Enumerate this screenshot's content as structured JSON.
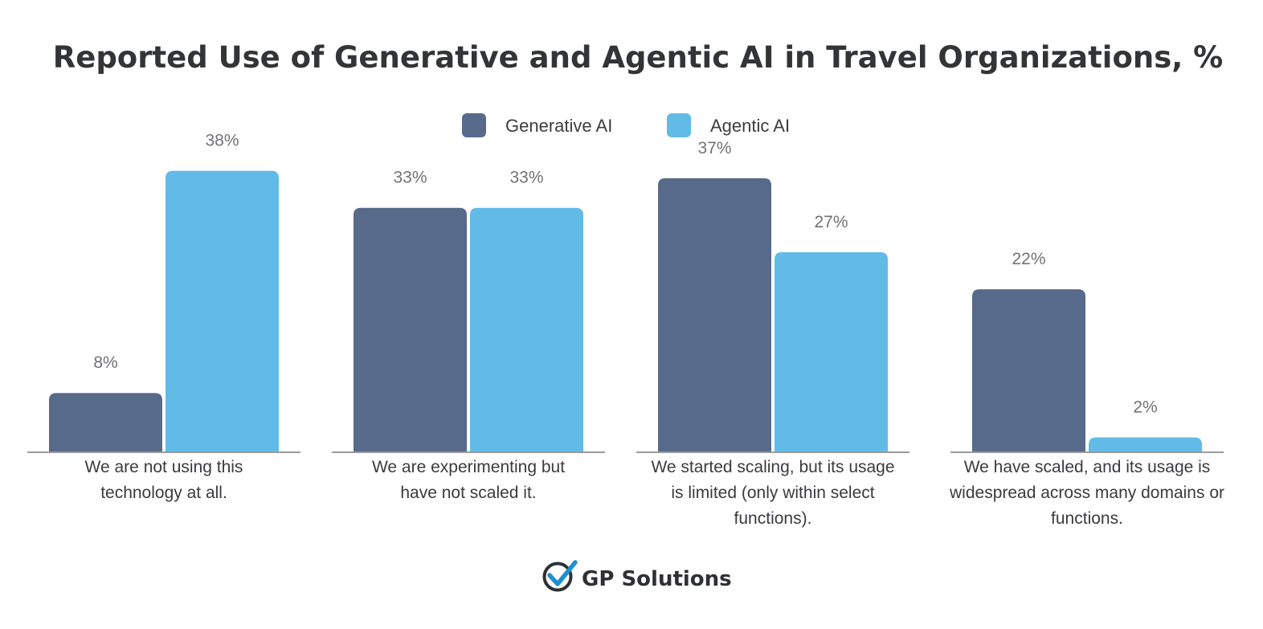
{
  "chart_data": {
    "type": "bar",
    "title": "Reported Use of Generative and Agentic AI in Travel Organizations, %",
    "categories": [
      [
        "We are not using this",
        "technology at all."
      ],
      [
        "We are experimenting but",
        "have not scaled it."
      ],
      [
        "We started scaling, but its usage",
        "is limited (only within select",
        "functions)."
      ],
      [
        "We have scaled, and its usage is",
        "widespread across many domains or",
        "functions."
      ]
    ],
    "series": [
      {
        "name": "Generative AI",
        "color": "#586a8a",
        "values": [
          8,
          33,
          37,
          22
        ],
        "labels": [
          "8%",
          "33%",
          "37%",
          "22%"
        ]
      },
      {
        "name": "Agentic AI",
        "color": "#62bbe6",
        "values": [
          38,
          33,
          27,
          2
        ],
        "labels": [
          "38%",
          "33%",
          "27%",
          "2%"
        ]
      }
    ],
    "ylim": [
      0,
      40
    ],
    "xlabel": "",
    "ylabel": "",
    "grid": false,
    "legend_position": "top-center"
  },
  "brand": {
    "name": "GP Solutions",
    "icon": "checkmark-circle-logo-icon",
    "icon_color": "#2f3033",
    "accent_color": "#1f8fd0"
  }
}
